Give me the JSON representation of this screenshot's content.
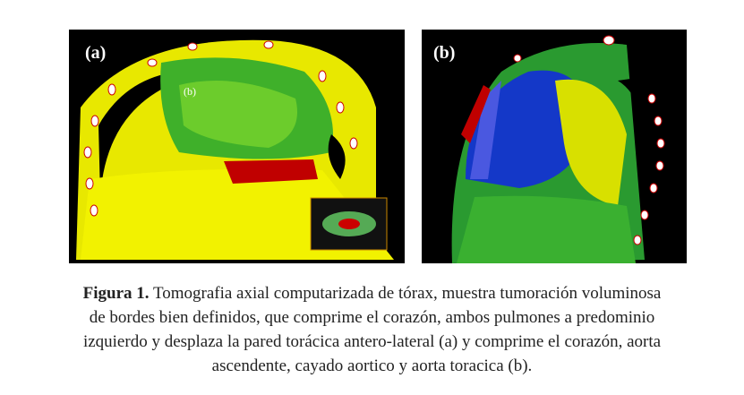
{
  "panels": [
    {
      "label": "(a)",
      "inner_label": "(b)"
    },
    {
      "label": "(b)"
    }
  ],
  "caption": {
    "label": "Figura 1.",
    "lines": [
      "Tomografia axial computarizada de tórax, muestra tumoración voluminosa",
      "de bordes bien definidos, que comprime el corazón, ambos pulmones a predominio",
      "izquierdo y desplaza la pared torácica antero-lateral (a) y comprime el corazón, aorta",
      "ascendente, cayado aortico y aorta toracica (b)."
    ]
  }
}
